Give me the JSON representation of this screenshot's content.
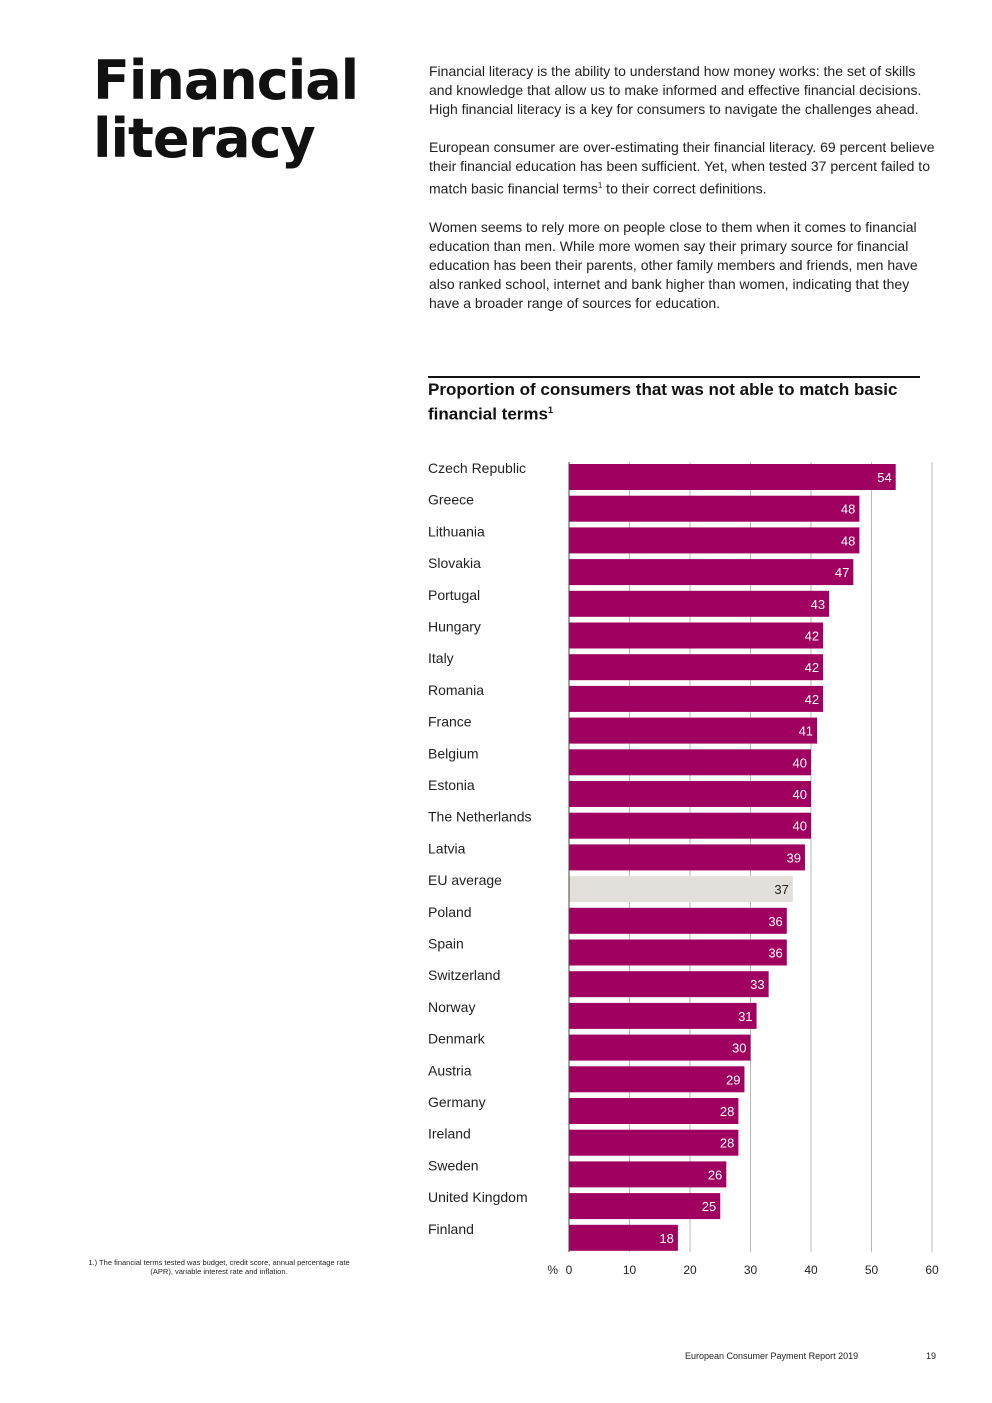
{
  "page": {
    "title_line1": "Financial",
    "title_line2": "literacy",
    "paragraph1": "Financial literacy is the ability to understand how money works: the set of skills and knowledge that allow us to make informed and effective financial decisions. High financial literacy is a key for consumers to navigate the challenges ahead.",
    "paragraph2_part1": "European consumer are over-estimating their financial literacy. 69 percent believe their financial education has been sufficient. Yet, when tested 37 percent failed to match basic financial terms",
    "paragraph2_sup": "1",
    "paragraph2_part2": " to their correct definitions.",
    "paragraph3": "Women seems to rely more on people close to them when it comes to financial education than men. While more women say their primary source for financial education has been their parents, other family members and friends, men have also ranked school, internet and bank higher than women, indicating that they have a broader range of sources for education.",
    "footnote": "1.) The financial terms tested was budget, credit score, annual percentage rate (APR), variable interest rate and inflation.",
    "footer_report": "European Consumer Payment Report 2019",
    "footer_page": "19"
  },
  "chart_data": {
    "type": "bar",
    "orientation": "horizontal",
    "title": "Proportion of consumers that was not able to match basic financial terms",
    "title_sup": "1",
    "xlabel": "%",
    "xlim": [
      0,
      60
    ],
    "xticks": [
      0,
      10,
      20,
      30,
      40,
      50,
      60
    ],
    "grid": true,
    "categories": [
      "Czech Republic",
      "Greece",
      "Lithuania",
      "Slovakia",
      "Portugal",
      "Hungary",
      "Italy",
      "Romania",
      "France",
      "Belgium",
      "Estonia",
      "The Netherlands",
      "Latvia",
      "EU average",
      "Poland",
      "Spain",
      "Switzerland",
      "Norway",
      "Denmark",
      "Austria",
      "Germany",
      "Ireland",
      "Sweden",
      "United Kingdom",
      "Finland"
    ],
    "values": [
      54,
      48,
      48,
      47,
      43,
      42,
      42,
      42,
      41,
      40,
      40,
      40,
      39,
      37,
      36,
      36,
      33,
      31,
      30,
      29,
      28,
      28,
      26,
      25,
      18
    ],
    "highlight_category": "EU average",
    "bar_color": "#a0005f",
    "highlight_color": "#e3e0dc",
    "grid_color": "#b8b8b8"
  }
}
